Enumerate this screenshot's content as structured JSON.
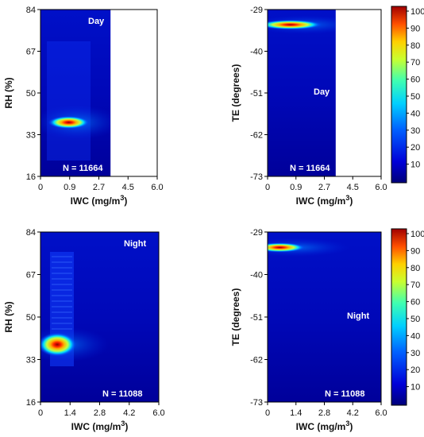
{
  "chart_data": [
    {
      "type": "heatmap",
      "title": "Day",
      "annotation": "N = 11664",
      "xlabel": "IWC (mg/m",
      "xlabel_sup": "3",
      "xlabel_end": ")",
      "ylabel": "RH (%)",
      "x_ticks": [
        "0",
        "0.9",
        "2.7",
        "4.5",
        "6.0"
      ],
      "y_ticks": [
        "84",
        "67",
        "50",
        "33",
        "16"
      ],
      "xlim": [
        0,
        6.0
      ],
      "ylim": [
        16,
        84
      ],
      "data_extent_x": [
        0,
        3.6
      ],
      "peaks": [
        {
          "x": 1.45,
          "y": 38,
          "value": 100
        }
      ],
      "colorbar": false
    },
    {
      "type": "heatmap",
      "title": "Day",
      "annotation": "N = 11664",
      "xlabel": "IWC (mg/m",
      "xlabel_sup": "3",
      "xlabel_end": ")",
      "ylabel": "TE (degrees)",
      "x_ticks": [
        "0",
        "0.9",
        "2.7",
        "4.5",
        "6.0"
      ],
      "y_ticks": [
        "-29",
        "-40",
        "-51",
        "-62",
        "-73"
      ],
      "xlim": [
        0,
        6.0
      ],
      "ylim": [
        -73,
        -29
      ],
      "data_extent_x": [
        0,
        3.6
      ],
      "peaks": [
        {
          "x": 1.2,
          "y": -33,
          "value": 100
        }
      ],
      "colorbar": true,
      "colorbar_ticks": [
        "100",
        "90",
        "80",
        "70",
        "60",
        "50",
        "40",
        "30",
        "20",
        "10"
      ]
    },
    {
      "type": "heatmap",
      "title": "Night",
      "annotation": "N = 11088",
      "xlabel": "IWC (mg/m",
      "xlabel_sup": "3",
      "xlabel_end": ")",
      "ylabel": "RH (%)",
      "x_ticks": [
        "0",
        "1.4",
        "2.8",
        "4.2",
        "6.0"
      ],
      "y_ticks": [
        "84",
        "67",
        "50",
        "33",
        "16"
      ],
      "xlim": [
        0,
        6.0
      ],
      "ylim": [
        16,
        84
      ],
      "data_extent_x": [
        0,
        6.0
      ],
      "peaks": [
        {
          "x": 0.85,
          "y": 39,
          "value": 100
        }
      ],
      "colorbar": false
    },
    {
      "type": "heatmap",
      "title": "Night",
      "annotation": "N = 11088",
      "xlabel": "IWC (mg/m",
      "xlabel_sup": "3",
      "xlabel_end": ")",
      "ylabel": "TE (degrees)",
      "x_ticks": [
        "0",
        "1.4",
        "2.8",
        "4.2",
        "6.0"
      ],
      "y_ticks": [
        "-29",
        "-40",
        "-51",
        "-62",
        "-73"
      ],
      "xlim": [
        0,
        6.0
      ],
      "ylim": [
        -73,
        -29
      ],
      "data_extent_x": [
        0,
        6.0
      ],
      "peaks": [
        {
          "x": 0.65,
          "y": -33,
          "value": 100
        }
      ],
      "colorbar": true,
      "colorbar_ticks": [
        "100",
        "90",
        "80",
        "70",
        "60",
        "50",
        "40",
        "30",
        "20",
        "10"
      ]
    }
  ]
}
